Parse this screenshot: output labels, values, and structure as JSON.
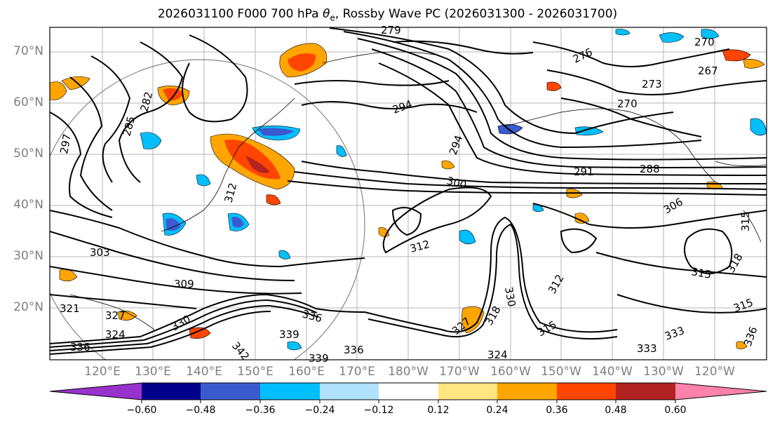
{
  "title": {
    "prefix": "2026031100 F000 700 hPa ",
    "symbol": "θ",
    "subscript": "e",
    "suffix": ", Rossby Wave PC (2026031300 - 2026031700)"
  },
  "axes": {
    "lat_labels": [
      "70°N",
      "60°N",
      "50°N",
      "40°N",
      "30°N",
      "20°N"
    ],
    "lon_labels": [
      "120°E",
      "130°E",
      "140°E",
      "150°E",
      "160°E",
      "170°E",
      "180°W",
      "170°W",
      "160°W",
      "150°W",
      "140°W",
      "130°W",
      "120°W"
    ]
  },
  "colorbar": {
    "ticks": [
      "−0.60",
      "−0.48",
      "−0.36",
      "−0.24",
      "−0.12",
      "0.12",
      "0.24",
      "0.36",
      "0.48",
      "0.60"
    ],
    "colors": [
      "#9932cc",
      "#00008b",
      "#3a5bd0",
      "#00bfff",
      "#b0e2ff",
      "#ffffff",
      "#ffe680",
      "#ffa500",
      "#ff4500",
      "#b22222",
      "#ff82ab"
    ]
  },
  "contour_labels": [
    "279",
    "276",
    "270",
    "267",
    "273",
    "270",
    "282",
    "285",
    "297",
    "294",
    "294",
    "291",
    "288",
    "300",
    "306",
    "303",
    "309",
    "312",
    "312",
    "315",
    "315",
    "315",
    "318",
    "321",
    "324",
    "327",
    "330",
    "333",
    "336",
    "336",
    "339",
    "342",
    "339",
    "336",
    "312",
    "324",
    "327",
    "330",
    "333",
    "336",
    "315",
    "318"
  ]
}
